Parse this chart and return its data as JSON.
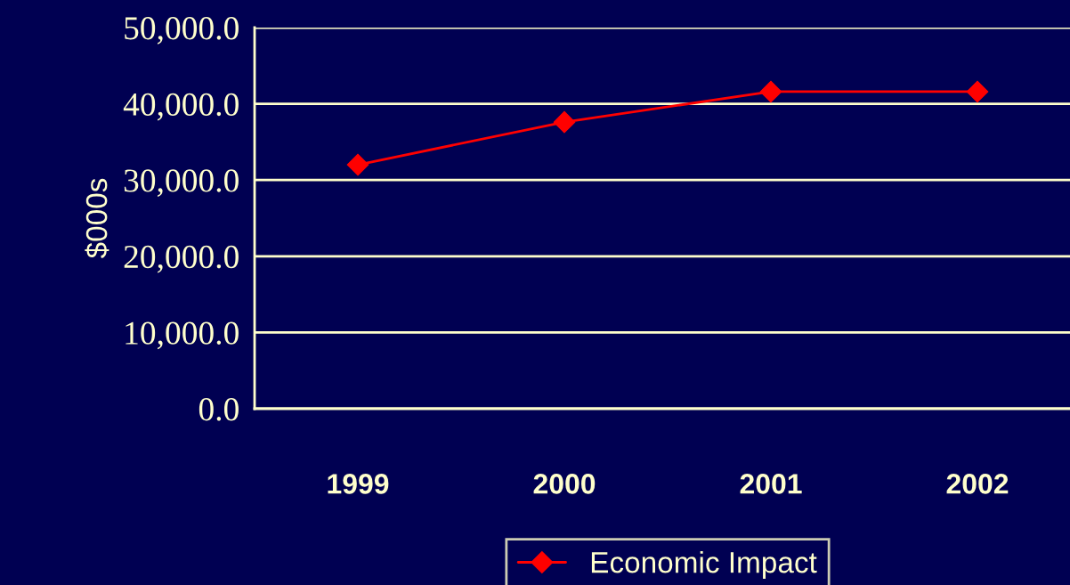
{
  "chart_data": {
    "type": "line",
    "ylabel": "$000s",
    "categories": [
      "1999",
      "2000",
      "2001",
      "2002"
    ],
    "series": [
      {
        "name": "Economic Impact",
        "color": "#ff0000",
        "values": [
          32000,
          37600,
          41600,
          41600
        ]
      }
    ],
    "ylim": [
      0,
      50000
    ],
    "yticks": [
      {
        "value": 0,
        "label": "0.0"
      },
      {
        "value": 10000,
        "label": "10,000.0"
      },
      {
        "value": 20000,
        "label": "20,000.0"
      },
      {
        "value": 30000,
        "label": "30,000.0"
      },
      {
        "value": 40000,
        "label": "40,000.0"
      },
      {
        "value": 50000,
        "label": "50,000.0"
      }
    ],
    "grid": "y",
    "legend": "bottom",
    "marker": "diamond",
    "line_style": "solid"
  }
}
